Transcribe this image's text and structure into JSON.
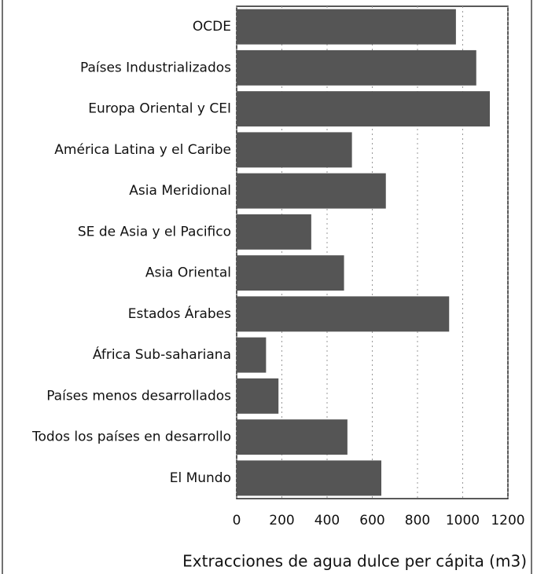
{
  "chart_data": {
    "type": "bar",
    "orientation": "horizontal",
    "x_label": "Extracciones de agua dulce per cápita (m3)",
    "categories": [
      "OCDE",
      "Países Industrializados",
      "Europa Oriental y CEI",
      "América Latina y el Caribe",
      "Asia Meridional",
      "SE de Asia y el Pacifico",
      "Asia Oriental",
      "Estados Árabes",
      "África Sub-sahariana",
      "Países menos desarrollados",
      "Todos los países en desarrollo",
      "El Mundo"
    ],
    "values": [
      970,
      1060,
      1120,
      510,
      660,
      330,
      475,
      940,
      130,
      185,
      490,
      640
    ],
    "color": "#555555",
    "xlim": [
      0,
      1200
    ],
    "xticks": [
      0,
      200,
      400,
      600,
      800,
      1000,
      1200
    ],
    "grid": true
  }
}
